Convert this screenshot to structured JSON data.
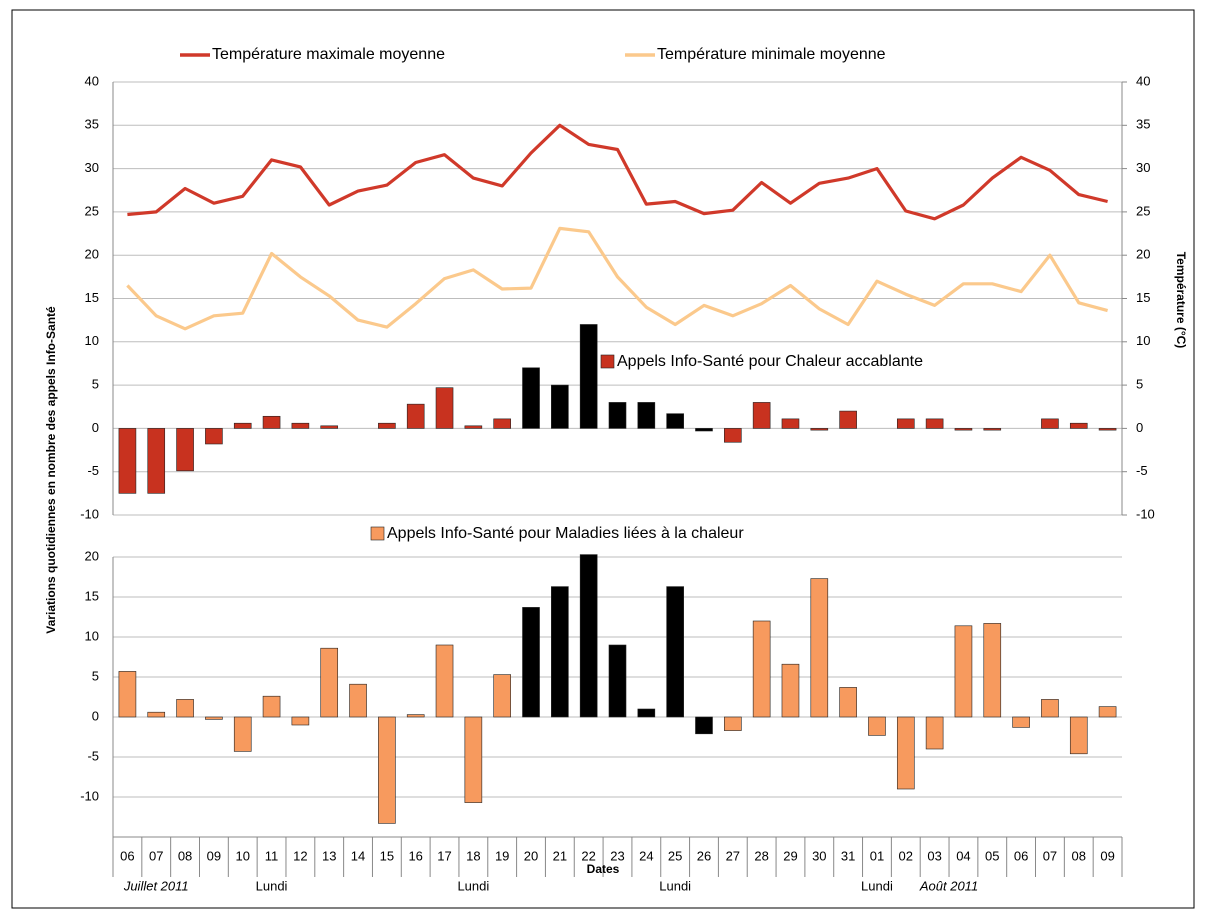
{
  "chart_data": [
    {
      "type": "combo",
      "ylabel": "Variations quotidiennes en nombre des appels  Info-Santé",
      "y2label": "Température (°C)",
      "ylim": [
        -10,
        40
      ],
      "yticks": [
        -10,
        -5,
        0,
        5,
        10,
        15,
        20,
        25,
        30,
        35,
        40
      ],
      "y2lim": [
        -10,
        40
      ],
      "y2ticks": [
        -10,
        -5,
        0,
        5,
        10,
        15,
        20,
        25,
        30,
        35,
        40
      ],
      "grid": true,
      "series": [
        {
          "name": "Température maximale moyenne",
          "kind": "line",
          "axis": "y2",
          "color": "#d0392a",
          "values": [
            24.7,
            25,
            27.7,
            26,
            26.8,
            31,
            30.2,
            25.8,
            27.4,
            28.1,
            30.7,
            31.6,
            28.9,
            28,
            31.8,
            35,
            32.8,
            32.2,
            25.9,
            26.2,
            24.8,
            25.2,
            28.4,
            26,
            28.3,
            28.9,
            30,
            25.1,
            24.2,
            25.8,
            28.9,
            31.3,
            29.8,
            27,
            26.2
          ]
        },
        {
          "name": "Température minimale moyenne",
          "kind": "line",
          "axis": "y2",
          "color": "#fbc98c",
          "values": [
            16.5,
            13,
            11.5,
            13,
            13.3,
            20.2,
            17.5,
            15.3,
            12.5,
            11.7,
            14.4,
            17.3,
            18.3,
            16.1,
            16.2,
            23.1,
            22.7,
            17.5,
            14,
            12,
            14.2,
            13,
            14.4,
            16.5,
            13.8,
            12,
            17,
            15.5,
            14.2,
            16.7,
            16.7,
            15.8,
            20,
            14.5,
            13.6
          ]
        },
        {
          "name": "Appels Info-Santé pour Chaleur accablante",
          "kind": "bar",
          "color": "#c8321f",
          "values": [
            -7.5,
            -7.5,
            -4.9,
            -1.8,
            0.6,
            1.4,
            0.6,
            0.3,
            0,
            0.6,
            2.8,
            4.7,
            0.3,
            1.1,
            7,
            5,
            12,
            3,
            3,
            1.7,
            -0.3,
            -1.6,
            3,
            1.1,
            -0.2,
            2,
            0,
            1.1,
            1.1,
            -0.2,
            -0.2,
            0,
            1.1,
            0.6,
            -0.2
          ],
          "colors": [
            "#c8321f",
            "#c8321f",
            "#c8321f",
            "#c8321f",
            "#c8321f",
            "#c8321f",
            "#c8321f",
            "#c8321f",
            "#c8321f",
            "#c8321f",
            "#c8321f",
            "#c8321f",
            "#c8321f",
            "#c8321f",
            "#000000",
            "#000000",
            "#000000",
            "#000000",
            "#000000",
            "#000000",
            "#000000",
            "#c8321f",
            "#c8321f",
            "#c8321f",
            "#c8321f",
            "#c8321f",
            "#c8321f",
            "#c8321f",
            "#c8321f",
            "#c8321f",
            "#c8321f",
            "#c8321f",
            "#c8321f",
            "#c8321f",
            "#c8321f"
          ]
        }
      ]
    },
    {
      "type": "bar",
      "x_label": "Dates",
      "categories": [
        "06",
        "07",
        "08",
        "09",
        "10",
        "11",
        "12",
        "13",
        "14",
        "15",
        "16",
        "17",
        "18",
        "19",
        "20",
        "21",
        "22",
        "23",
        "24",
        "25",
        "26",
        "27",
        "28",
        "29",
        "30",
        "31",
        "01",
        "02",
        "03",
        "04",
        "05",
        "06",
        "07",
        "08",
        "09"
      ],
      "month_labels": [
        null,
        "Juillet 2011",
        null,
        null,
        null,
        null,
        null,
        null,
        null,
        null,
        null,
        null,
        null,
        null,
        null,
        null,
        null,
        null,
        null,
        null,
        null,
        null,
        null,
        null,
        null,
        null,
        null,
        null,
        "Août 2011",
        null,
        null,
        null,
        null,
        null,
        null
      ],
      "day_labels": [
        null,
        null,
        null,
        null,
        null,
        "Lundi",
        null,
        null,
        null,
        null,
        null,
        null,
        "Lundi",
        null,
        null,
        null,
        null,
        null,
        null,
        "Lundi",
        null,
        null,
        null,
        null,
        null,
        null,
        "Lundi",
        null,
        null,
        null,
        null,
        null,
        null,
        null,
        null
      ],
      "ylim": [
        -15,
        20
      ],
      "yticks": [
        -10,
        -5,
        0,
        5,
        10,
        15,
        20
      ],
      "grid": true,
      "series": [
        {
          "name": "Appels Info-Santé pour Maladies liées à la chaleur",
          "color": "#f79a5e",
          "values": [
            5.7,
            0.6,
            2.2,
            -0.3,
            -4.3,
            2.6,
            -1,
            8.6,
            4.1,
            -13.3,
            0.3,
            9,
            -10.7,
            5.3,
            13.7,
            16.3,
            20.3,
            9,
            1,
            16.3,
            -2.1,
            -1.7,
            12,
            6.6,
            17.3,
            3.7,
            -2.3,
            -9,
            -4,
            11.4,
            11.7,
            -1.3,
            2.2,
            -4.6,
            1.3
          ],
          "colors": [
            "#f79a5e",
            "#f79a5e",
            "#f79a5e",
            "#f79a5e",
            "#f79a5e",
            "#f79a5e",
            "#f79a5e",
            "#f79a5e",
            "#f79a5e",
            "#f79a5e",
            "#f79a5e",
            "#f79a5e",
            "#f79a5e",
            "#f79a5e",
            "#000000",
            "#000000",
            "#000000",
            "#000000",
            "#000000",
            "#000000",
            "#000000",
            "#f79a5e",
            "#f79a5e",
            "#f79a5e",
            "#f79a5e",
            "#f79a5e",
            "#f79a5e",
            "#f79a5e",
            "#f79a5e",
            "#f79a5e",
            "#f79a5e",
            "#f79a5e",
            "#f79a5e",
            "#f79a5e",
            "#f79a5e"
          ]
        }
      ]
    }
  ]
}
